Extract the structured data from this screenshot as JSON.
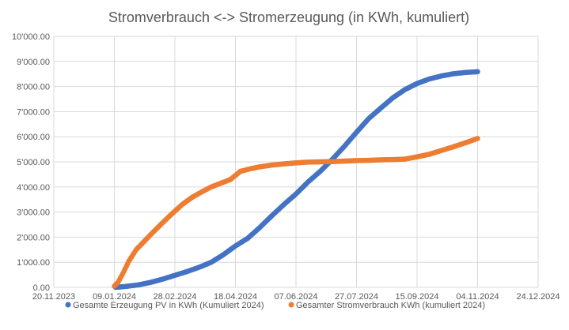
{
  "chart_data": {
    "type": "scatter",
    "title": "Stromverbrauch <-> Stromerzeugung (in KWh, kumuliert)",
    "xlabel": "",
    "ylabel": "",
    "x_ticks": [
      "20.11.2023",
      "09.01.2024",
      "28.02.2024",
      "18.04.2024",
      "07.06.2024",
      "27.07.2024",
      "15.09.2024",
      "04.11.2024",
      "24.12.2024"
    ],
    "x_range_days": [
      0,
      400
    ],
    "y_ticks": [
      "0.00",
      "1'000.00",
      "2'000.00",
      "3'000.00",
      "4'000.00",
      "5'000.00",
      "6'000.00",
      "7'000.00",
      "8'000.00",
      "9'000.00",
      "10'000.00"
    ],
    "ylim": [
      0,
      10000
    ],
    "grid": true,
    "legend_position": "bottom",
    "series": [
      {
        "name": "Gesamte Erzeugung PV in KWh (Kumuliert 2024)",
        "color": "#4472C4",
        "x": [
          51,
          60,
          70,
          80,
          90,
          100,
          110,
          120,
          130,
          140,
          150,
          160,
          170,
          180,
          190,
          200,
          210,
          220,
          230,
          240,
          250,
          260,
          270,
          280,
          290,
          300,
          310,
          320,
          330,
          340,
          350
        ],
        "y": [
          0,
          40,
          100,
          200,
          330,
          480,
          630,
          800,
          1000,
          1300,
          1650,
          1950,
          2380,
          2850,
          3300,
          3720,
          4200,
          4620,
          5100,
          5620,
          6180,
          6720,
          7140,
          7550,
          7880,
          8120,
          8300,
          8420,
          8510,
          8560,
          8590
        ]
      },
      {
        "name": "Gesamter Stromverbrauch KWh (kumuliert 2024)",
        "color": "#ED7D31",
        "x": [
          50,
          53,
          57,
          62,
          68,
          75,
          82,
          90,
          98,
          106,
          114,
          122,
          130,
          138,
          146,
          154,
          162,
          170,
          180,
          190,
          200,
          210,
          220,
          230,
          240,
          250,
          260,
          270,
          280,
          290,
          300,
          310,
          320,
          330,
          340,
          350
        ],
        "y": [
          50,
          200,
          550,
          1050,
          1500,
          1850,
          2200,
          2580,
          2950,
          3300,
          3580,
          3800,
          4000,
          4150,
          4300,
          4620,
          4720,
          4800,
          4870,
          4920,
          4960,
          4990,
          5000,
          5010,
          5030,
          5050,
          5060,
          5080,
          5090,
          5110,
          5200,
          5300,
          5450,
          5600,
          5760,
          5930
        ]
      }
    ]
  }
}
